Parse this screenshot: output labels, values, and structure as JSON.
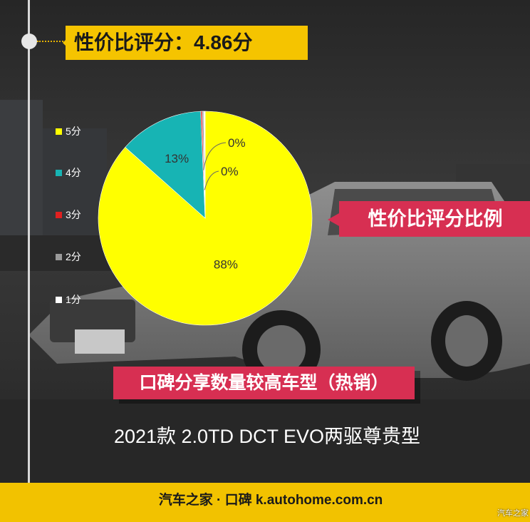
{
  "header": {
    "title": "性价比评分：4.86分"
  },
  "chart_data": {
    "type": "pie",
    "categories": [
      "5分",
      "4分",
      "3分",
      "2分",
      "1分"
    ],
    "values": [
      88,
      13,
      0,
      0,
      0
    ],
    "labels": [
      "88%",
      "13%",
      "0%",
      "0%",
      ""
    ],
    "colors": [
      "#ffff00",
      "#17b4b4",
      "#e02020",
      "#9a9a9a",
      "#ffffff"
    ],
    "legend_position": "left",
    "title": "",
    "xlabel": "",
    "ylabel": ""
  },
  "badges": {
    "ratio_label": "性价比评分比例",
    "popular_label": "口碑分享数量较高车型（热销）"
  },
  "model": {
    "name": "2021款 2.0TD DCT EVO两驱尊贵型"
  },
  "footer": {
    "text": "汽车之家 · 口碑  k.autohome.com.cn"
  },
  "watermark": {
    "text": "汽车之家"
  },
  "colors": {
    "accent_yellow": "#f5c400",
    "badge_red": "#d72f52"
  }
}
